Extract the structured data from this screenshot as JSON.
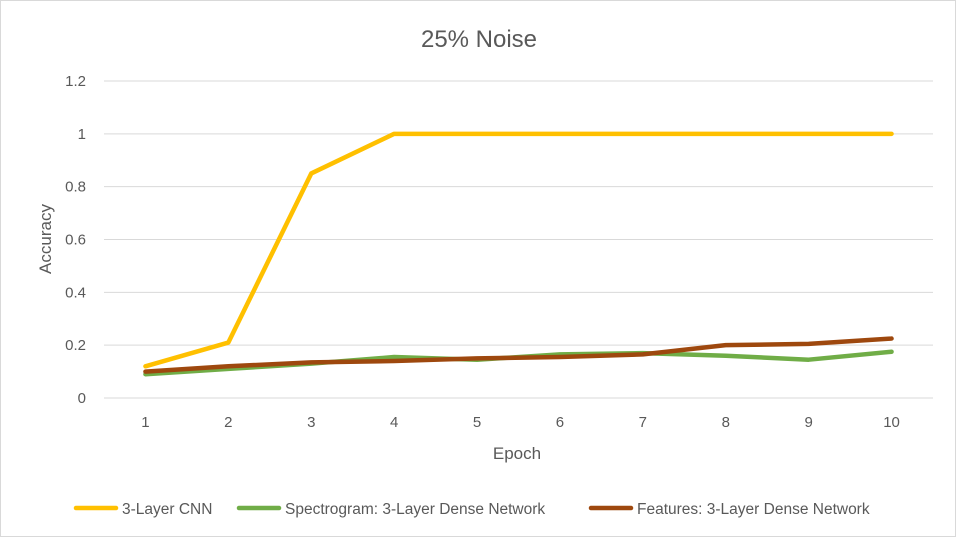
{
  "chart_data": {
    "type": "line",
    "title": "25% Noise",
    "xlabel": "Epoch",
    "ylabel": "Accuracy",
    "x": [
      1,
      2,
      3,
      4,
      5,
      6,
      7,
      8,
      9,
      10
    ],
    "y_ticks": [
      "0",
      "0.2",
      "0.4",
      "0.6",
      "0.8",
      "1",
      "1.2"
    ],
    "ylim": [
      0,
      1.2
    ],
    "grid": "horizontal",
    "legend_position": "bottom",
    "series": [
      {
        "name": "3-Layer CNN",
        "color": "#ffc000",
        "values": [
          0.12,
          0.21,
          0.85,
          1.0,
          1.0,
          1.0,
          1.0,
          1.0,
          1.0,
          1.0
        ]
      },
      {
        "name": "Spectrogram: 3-Layer Dense Network",
        "color": "#70ad47",
        "values": [
          0.09,
          0.11,
          0.13,
          0.155,
          0.145,
          0.165,
          0.17,
          0.16,
          0.145,
          0.175
        ]
      },
      {
        "name": "Features: 3-Layer Dense Network",
        "color": "#9e480e",
        "values": [
          0.1,
          0.12,
          0.135,
          0.14,
          0.15,
          0.155,
          0.165,
          0.2,
          0.205,
          0.225
        ]
      }
    ]
  }
}
